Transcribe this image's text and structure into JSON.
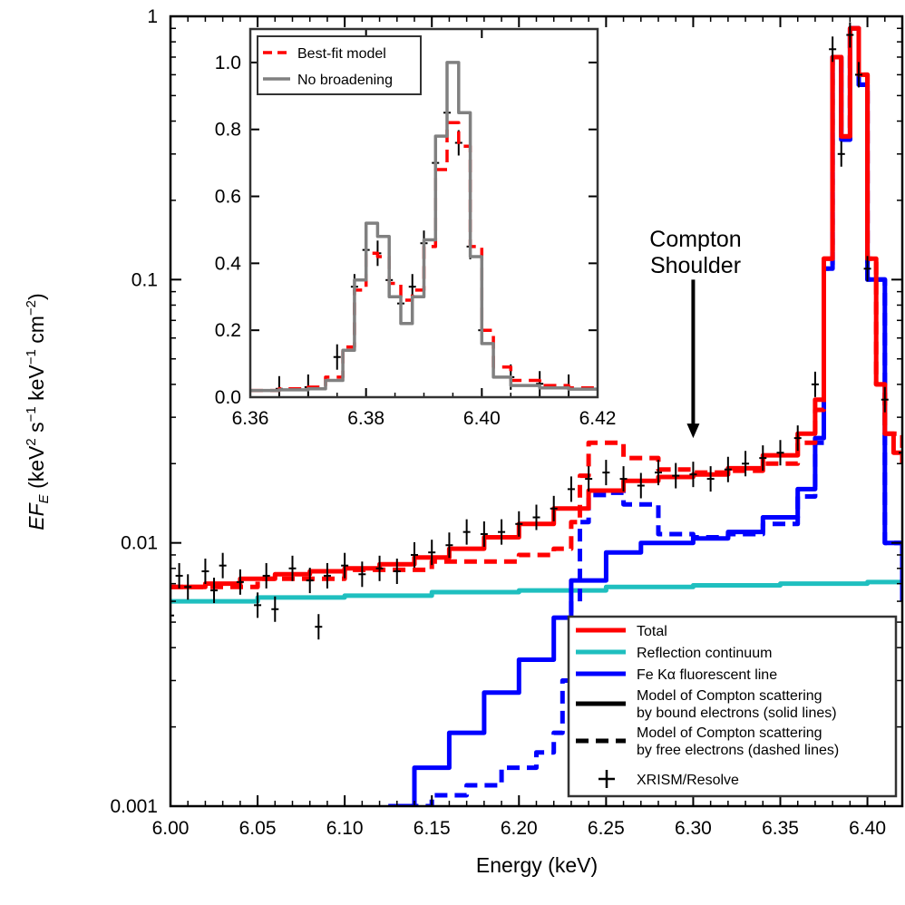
{
  "chart_data": [
    {
      "type": "line",
      "role": "main",
      "xlabel": "Energy (keV)",
      "ylabel": {
        "prefix": "EF",
        "sub": "E",
        "units_a": " (keV",
        "sup_a": "2",
        "units_b": " s",
        "sup_b": "−1",
        "units_c": " keV",
        "sup_c": "−1",
        "units_d": " cm",
        "sup_d": "−2",
        "units_e": ")"
      },
      "xlim": [
        6.0,
        6.42
      ],
      "ylim": [
        0.001,
        1
      ],
      "yscale": "log",
      "x_ticks": [
        "6.00",
        "6.05",
        "6.10",
        "6.15",
        "6.20",
        "6.25",
        "6.30",
        "6.35",
        "6.40"
      ],
      "y_ticks": [
        "0.001",
        "0.01",
        "0.1",
        "1"
      ],
      "annotation": {
        "line1": "Compton",
        "line2": "Shoulder",
        "x": 6.3,
        "y_from": 0.1,
        "y_to": 0.025
      },
      "legend": {
        "placement": "lower-right",
        "entries": [
          {
            "label": "Total",
            "color": "#ff0000",
            "style": "solid"
          },
          {
            "label": "Reflection continuum",
            "color": "#1fbfbf",
            "style": "solid"
          },
          {
            "label": "Fe Kα fluorescent line",
            "color": "#0000ff",
            "style": "solid"
          },
          {
            "label": "Model of Compton scattering",
            "label2": "by bound electrons (solid lines)",
            "color": "#000000",
            "style": "solid"
          },
          {
            "label": "Model of Compton scattering",
            "label2": "by free electrons (dashed lines)",
            "color": "#000000",
            "style": "dashed"
          },
          {
            "label": "XRISM/Resolve",
            "color": "#000000",
            "style": "cross"
          }
        ]
      },
      "series": [
        {
          "name": "Total",
          "color": "#ff0000",
          "style": "solid",
          "x": [
            6.0,
            6.02,
            6.04,
            6.06,
            6.08,
            6.1,
            6.12,
            6.14,
            6.16,
            6.18,
            6.2,
            6.22,
            6.24,
            6.26,
            6.28,
            6.3,
            6.32,
            6.34,
            6.36,
            6.37,
            6.375,
            6.38,
            6.385,
            6.39,
            6.395,
            6.4,
            6.405,
            6.41,
            6.415,
            6.42
          ],
          "y": [
            0.0068,
            0.007,
            0.0073,
            0.0076,
            0.0078,
            0.008,
            0.0083,
            0.0088,
            0.0095,
            0.0105,
            0.0118,
            0.0135,
            0.0158,
            0.0172,
            0.0178,
            0.0182,
            0.0192,
            0.0215,
            0.026,
            0.035,
            0.12,
            0.7,
            0.35,
            0.9,
            0.6,
            0.12,
            0.04,
            0.026,
            0.022,
            0.02
          ]
        },
        {
          "name": "Total",
          "color": "#ff0000",
          "style": "dashed",
          "x": [
            6.0,
            6.05,
            6.1,
            6.15,
            6.2,
            6.22,
            6.23,
            6.235,
            6.24,
            6.25,
            6.26,
            6.28,
            6.3,
            6.32,
            6.34,
            6.36,
            6.37,
            6.375,
            6.38,
            6.385,
            6.39,
            6.395,
            6.4,
            6.405,
            6.41,
            6.42
          ],
          "y": [
            0.0068,
            0.0073,
            0.0079,
            0.0085,
            0.009,
            0.0095,
            0.012,
            0.018,
            0.024,
            0.024,
            0.021,
            0.019,
            0.0185,
            0.0188,
            0.02,
            0.024,
            0.032,
            0.12,
            0.7,
            0.35,
            0.9,
            0.6,
            0.12,
            0.04,
            0.026,
            0.02
          ]
        },
        {
          "name": "Reflection continuum",
          "color": "#1fbfbf",
          "style": "solid",
          "x": [
            6.0,
            6.05,
            6.1,
            6.15,
            6.2,
            6.25,
            6.3,
            6.35,
            6.4,
            6.42
          ],
          "y": [
            0.006,
            0.0062,
            0.0063,
            0.0065,
            0.0066,
            0.0068,
            0.0069,
            0.007,
            0.0071,
            0.0072
          ]
        },
        {
          "name": "Fe Kα fluorescent line",
          "color": "#0000ff",
          "style": "solid",
          "x": [
            6.125,
            6.14,
            6.16,
            6.18,
            6.2,
            6.22,
            6.23,
            6.25,
            6.27,
            6.3,
            6.32,
            6.34,
            6.36,
            6.37,
            6.375,
            6.38,
            6.385,
            6.39,
            6.395,
            6.4,
            6.41,
            6.42
          ],
          "y": [
            0.001,
            0.0014,
            0.0019,
            0.0027,
            0.0036,
            0.0052,
            0.0072,
            0.0092,
            0.01,
            0.0104,
            0.011,
            0.0125,
            0.016,
            0.025,
            0.11,
            0.7,
            0.34,
            0.9,
            0.55,
            0.1,
            0.01,
            0.006
          ]
        },
        {
          "name": "Fe Kα fluorescent line",
          "color": "#0000ff",
          "style": "dashed",
          "x": [
            6.135,
            6.15,
            6.17,
            6.19,
            6.21,
            6.22,
            6.225,
            6.23,
            6.235,
            6.24,
            6.25,
            6.26,
            6.28,
            6.3,
            6.32,
            6.34,
            6.36,
            6.37,
            6.375,
            6.38,
            6.385,
            6.39,
            6.395,
            6.4,
            6.41,
            6.42
          ],
          "y": [
            0.001,
            0.0011,
            0.0012,
            0.0014,
            0.0016,
            0.0019,
            0.003,
            0.006,
            0.012,
            0.0152,
            0.0155,
            0.014,
            0.0108,
            0.0105,
            0.0108,
            0.0118,
            0.015,
            0.024,
            0.11,
            0.7,
            0.34,
            0.9,
            0.55,
            0.1,
            0.01,
            0.006
          ]
        },
        {
          "name": "XRISM/Resolve",
          "color": "#000000",
          "style": "cross",
          "x": [
            6.0,
            6.005,
            6.01,
            6.02,
            6.025,
            6.03,
            6.04,
            6.05,
            6.055,
            6.06,
            6.07,
            6.08,
            6.085,
            6.09,
            6.1,
            6.11,
            6.12,
            6.13,
            6.14,
            6.15,
            6.16,
            6.17,
            6.18,
            6.19,
            6.2,
            6.21,
            6.22,
            6.23,
            6.24,
            6.25,
            6.26,
            6.27,
            6.28,
            6.29,
            6.3,
            6.31,
            6.32,
            6.33,
            6.34,
            6.35,
            6.36,
            6.37,
            6.38,
            6.385,
            6.39,
            6.395,
            6.4,
            6.41,
            6.42
          ],
          "y": [
            0.0053,
            0.0075,
            0.0068,
            0.0078,
            0.0066,
            0.0082,
            0.0071,
            0.0058,
            0.0075,
            0.0056,
            0.008,
            0.0072,
            0.0048,
            0.0075,
            0.0082,
            0.0076,
            0.008,
            0.0078,
            0.009,
            0.0092,
            0.0098,
            0.011,
            0.0108,
            0.011,
            0.0118,
            0.0125,
            0.0135,
            0.016,
            0.0175,
            0.0185,
            0.0175,
            0.0165,
            0.0185,
            0.018,
            0.0182,
            0.0175,
            0.019,
            0.02,
            0.021,
            0.022,
            0.025,
            0.04,
            0.75,
            0.3,
            0.85,
            0.6,
            0.11,
            0.035,
            0.022
          ]
        }
      ]
    },
    {
      "type": "line",
      "role": "inset",
      "xlim": [
        6.36,
        6.42
      ],
      "ylim": [
        0.0,
        1.1
      ],
      "x_ticks": [
        "6.36",
        "6.38",
        "6.40",
        "6.42"
      ],
      "y_ticks": [
        "0.0",
        "0.2",
        "0.4",
        "0.6",
        "0.8",
        "1.0"
      ],
      "legend": {
        "placement": "top-left",
        "entries": [
          {
            "label": "Best-fit model",
            "color": "#ff0000",
            "style": "dashed"
          },
          {
            "label": "No broadening",
            "color": "#808080",
            "style": "solid"
          }
        ]
      },
      "series": [
        {
          "name": "Best-fit model",
          "color": "#ff0000",
          "style": "dashed",
          "x": [
            6.36,
            6.365,
            6.37,
            6.373,
            6.376,
            6.378,
            6.38,
            6.382,
            6.384,
            6.386,
            6.388,
            6.39,
            6.392,
            6.394,
            6.396,
            6.398,
            6.4,
            6.402,
            6.405,
            6.41,
            6.415,
            6.42
          ],
          "y": [
            0.02,
            0.025,
            0.03,
            0.06,
            0.15,
            0.32,
            0.43,
            0.42,
            0.34,
            0.29,
            0.32,
            0.45,
            0.68,
            0.82,
            0.75,
            0.45,
            0.2,
            0.09,
            0.05,
            0.035,
            0.028,
            0.025
          ]
        },
        {
          "name": "No broadening",
          "color": "#808080",
          "style": "solid",
          "x": [
            6.36,
            6.365,
            6.37,
            6.373,
            6.376,
            6.378,
            6.38,
            6.382,
            6.384,
            6.386,
            6.388,
            6.39,
            6.392,
            6.394,
            6.396,
            6.398,
            6.4,
            6.402,
            6.405,
            6.41,
            6.415,
            6.42
          ],
          "y": [
            0.02,
            0.022,
            0.025,
            0.05,
            0.14,
            0.35,
            0.52,
            0.48,
            0.3,
            0.22,
            0.3,
            0.47,
            0.78,
            1.0,
            0.85,
            0.42,
            0.16,
            0.06,
            0.035,
            0.028,
            0.024,
            0.022
          ]
        },
        {
          "name": "XRISM/Resolve",
          "color": "#000000",
          "style": "cross",
          "x": [
            6.365,
            6.37,
            6.375,
            6.378,
            6.38,
            6.382,
            6.384,
            6.386,
            6.388,
            6.39,
            6.392,
            6.394,
            6.396,
            6.398,
            6.4,
            6.405,
            6.41,
            6.415
          ],
          "y": [
            0.025,
            0.03,
            0.12,
            0.33,
            0.44,
            0.43,
            0.35,
            0.28,
            0.33,
            0.46,
            0.7,
            0.85,
            0.76,
            0.45,
            0.2,
            0.06,
            0.04,
            0.03
          ]
        }
      ]
    }
  ]
}
